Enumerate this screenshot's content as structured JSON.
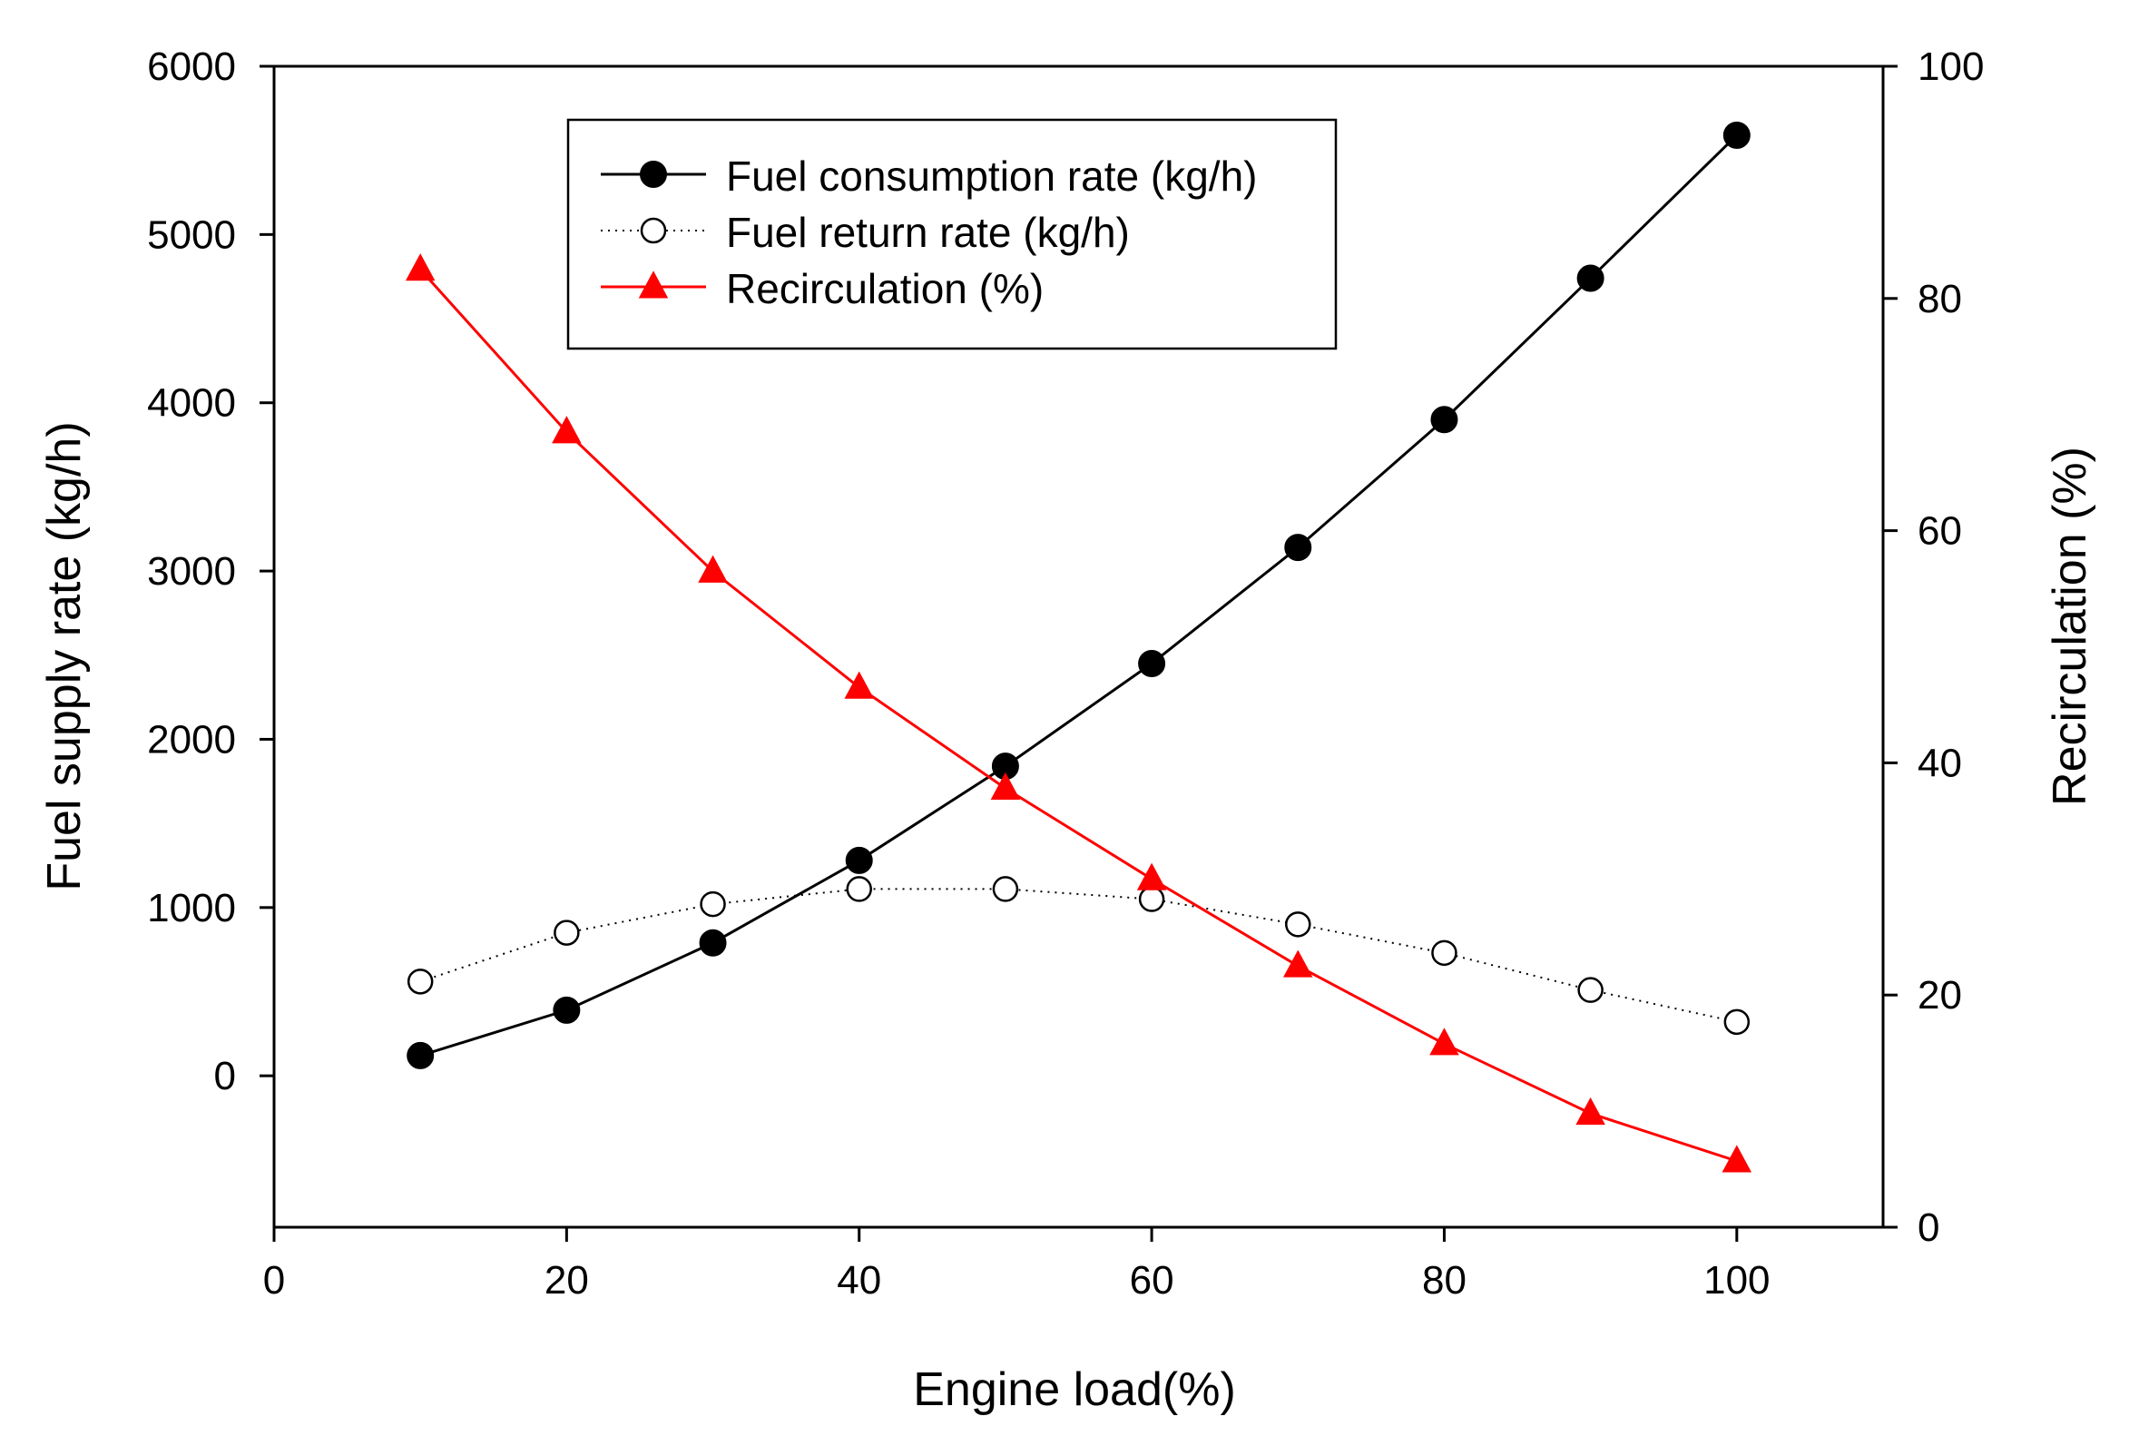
{
  "chart_data": {
    "type": "line",
    "xlabel": "Engine load(%)",
    "ylabel": "Fuel supply rate (kg/h)",
    "y2label": "Recirculation (%)",
    "xlim": [
      0,
      110
    ],
    "ylim": [
      -900,
      6000
    ],
    "y2lim": [
      0,
      100
    ],
    "x_ticks": [
      0,
      20,
      40,
      60,
      80,
      100
    ],
    "y_ticks": [
      0,
      1000,
      2000,
      3000,
      4000,
      5000,
      6000
    ],
    "y2_ticks": [
      0,
      20,
      40,
      60,
      80,
      100
    ],
    "grid": false,
    "legend_position": "top-center",
    "series": [
      {
        "name": "Fuel consumption rate (kg/h)",
        "axis": "left",
        "marker": "filled-circle",
        "line_style": "solid",
        "color": "#000000",
        "x": [
          10,
          20,
          30,
          40,
          50,
          60,
          70,
          80,
          90,
          100
        ],
        "values": [
          120,
          390,
          790,
          1280,
          1840,
          2450,
          3140,
          3900,
          4740,
          5590
        ]
      },
      {
        "name": "Fuel return rate (kg/h)",
        "axis": "left",
        "marker": "open-circle",
        "line_style": "dotted",
        "color": "#000000",
        "x": [
          10,
          20,
          30,
          40,
          50,
          60,
          70,
          80,
          90,
          100
        ],
        "values": [
          560,
          850,
          1020,
          1110,
          1110,
          1050,
          900,
          730,
          510,
          320
        ]
      },
      {
        "name": "Recirculation (%)",
        "axis": "right",
        "marker": "filled-triangle",
        "line_style": "solid",
        "color": "#ff0000",
        "x": [
          10,
          20,
          30,
          40,
          50,
          60,
          70,
          80,
          90,
          100
        ],
        "values": [
          82.5,
          68.5,
          56.5,
          46.5,
          37.8,
          30,
          22.5,
          15.8,
          9.8,
          5.7
        ]
      }
    ]
  }
}
